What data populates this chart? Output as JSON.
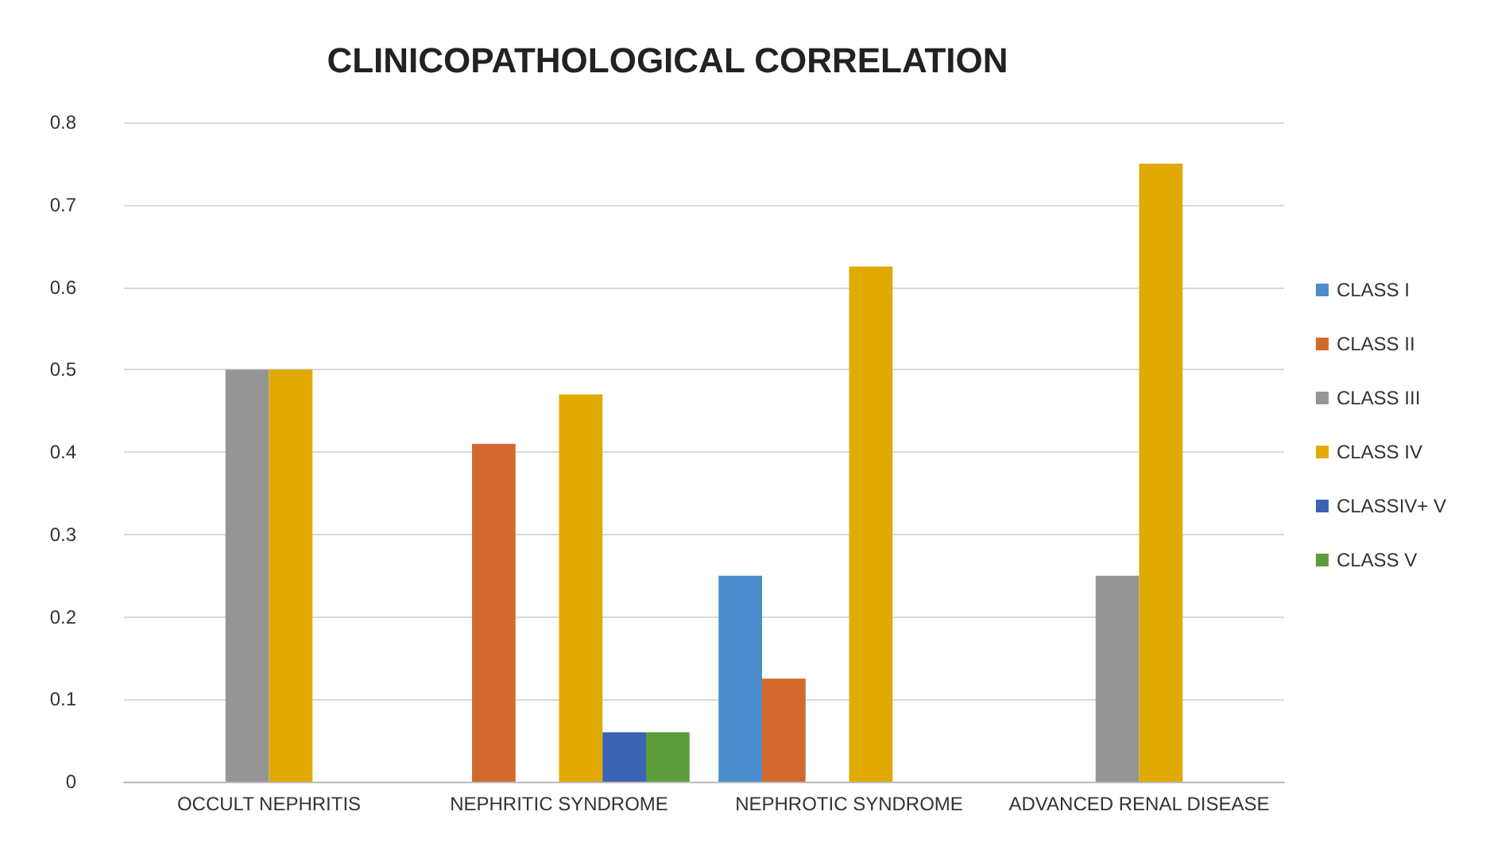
{
  "chart_data": {
    "type": "bar",
    "title": "CLINICOPATHOLOGICAL CORRELATION",
    "categories": [
      "OCCULT NEPHRITIS",
      "NEPHRITIC SYNDROME",
      "NEPHROTIC SYNDROME",
      "ADVANCED RENAL DISEASE"
    ],
    "series": [
      {
        "name": "CLASS I",
        "color": "#4a8ccc",
        "values": [
          0,
          0,
          0.25,
          0
        ]
      },
      {
        "name": "CLASS II",
        "color": "#d2692c",
        "values": [
          0,
          0.41,
          0.125,
          0
        ]
      },
      {
        "name": "CLASS III",
        "color": "#959595",
        "values": [
          0.5,
          0,
          0,
          0.25
        ]
      },
      {
        "name": "CLASS IV",
        "color": "#e0aa00",
        "values": [
          0.5,
          0.47,
          0.625,
          0.75
        ]
      },
      {
        "name": "CLASSIV+ V",
        "color": "#3b63b3",
        "values": [
          0,
          0.06,
          0,
          0
        ]
      },
      {
        "name": "CLASS V",
        "color": "#5c9c3c",
        "values": [
          0,
          0.06,
          0,
          0
        ]
      }
    ],
    "ylim": [
      0,
      0.8
    ],
    "yticks": [
      0,
      0.1,
      0.2,
      0.3,
      0.4,
      0.5,
      0.6,
      0.7,
      0.8
    ],
    "grid": "y",
    "legend": "right"
  }
}
